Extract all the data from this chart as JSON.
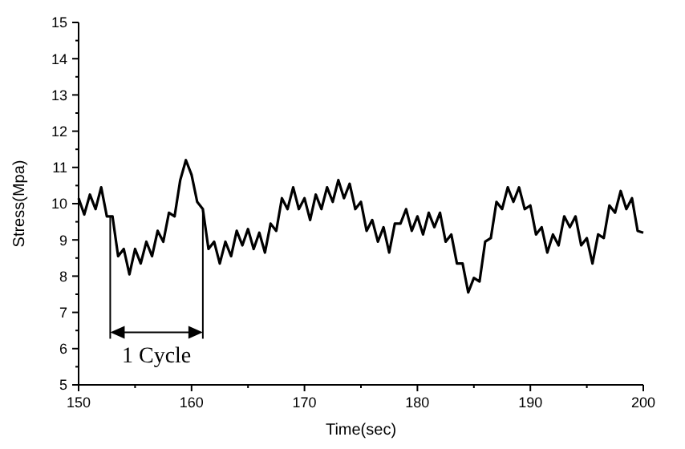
{
  "chart_data": {
    "type": "line",
    "xlabel": "Time(sec)",
    "ylabel": "Stress(Mpa)",
    "x": [
      150,
      150.5,
      151,
      151.5,
      152,
      152.5,
      153,
      153.5,
      154,
      154.5,
      155,
      155.5,
      156,
      156.5,
      157,
      157.5,
      158,
      158.5,
      159,
      159.5,
      160,
      160.5,
      161,
      161.5,
      162,
      162.5,
      163,
      163.5,
      164,
      164.5,
      165,
      165.5,
      166,
      166.5,
      167,
      167.5,
      168,
      168.5,
      169,
      169.5,
      170,
      170.5,
      171,
      171.5,
      172,
      172.5,
      173,
      173.5,
      174,
      174.5,
      175,
      175.5,
      176,
      176.5,
      177,
      177.5,
      178,
      178.5,
      179,
      179.5,
      180,
      180.5,
      181,
      181.5,
      182,
      182.5,
      183,
      183.5,
      184,
      184.5,
      185,
      185.5,
      186,
      186.5,
      187,
      187.5,
      188,
      188.5,
      189,
      189.5,
      190,
      190.5,
      191,
      191.5,
      192,
      192.5,
      193,
      193.5,
      194,
      194.5,
      195,
      195.5,
      196,
      196.5,
      197,
      197.5,
      198,
      198.5,
      199,
      199.5,
      200
    ],
    "series": [
      {
        "color": "#000000",
        "values": [
          10.15,
          9.7,
          10.25,
          9.85,
          10.45,
          9.65,
          9.65,
          8.55,
          8.75,
          8.05,
          8.75,
          8.35,
          8.95,
          8.55,
          9.25,
          8.95,
          9.75,
          9.65,
          10.65,
          11.2,
          10.8,
          10.05,
          9.85,
          8.75,
          8.95,
          8.35,
          8.95,
          8.55,
          9.25,
          8.85,
          9.3,
          8.75,
          9.2,
          8.65,
          9.45,
          9.25,
          10.15,
          9.85,
          10.45,
          9.85,
          10.15,
          9.55,
          10.25,
          9.85,
          10.45,
          10.05,
          10.65,
          10.15,
          10.55,
          9.85,
          10.05,
          9.25,
          9.55,
          8.95,
          9.35,
          8.65,
          9.45,
          9.45,
          9.85,
          9.25,
          9.65,
          9.15,
          9.75,
          9.35,
          9.75,
          8.95,
          9.15,
          8.35,
          8.35,
          7.55,
          7.95,
          7.85,
          8.95,
          9.05,
          10.05,
          9.85,
          10.45,
          10.05,
          10.45,
          9.85,
          9.95,
          9.15,
          9.35,
          8.65,
          9.15,
          8.85,
          9.65,
          9.35,
          9.65,
          8.85,
          9.05,
          8.35,
          9.15,
          9.05,
          9.95,
          9.75,
          10.35,
          9.85,
          10.15,
          9.25,
          9.2
        ]
      }
    ],
    "xlim": [
      150,
      200
    ],
    "xticks": [
      150,
      {
        "value": 155,
        "label": null
      },
      160,
      {
        "value": 165,
        "label": null
      },
      170,
      {
        "value": 175,
        "label": null
      },
      180,
      {
        "value": 185,
        "label": null
      },
      190,
      {
        "value": 195,
        "label": null
      },
      200
    ],
    "ylim": [
      5,
      15
    ],
    "yticks": [
      5,
      {
        "value": 5.5,
        "label": null
      },
      6,
      {
        "value": 6.5,
        "label": null
      },
      7,
      {
        "value": 7.5,
        "label": null
      },
      8,
      {
        "value": 8.5,
        "label": null
      },
      9,
      {
        "value": 9.5,
        "label": null
      },
      10,
      {
        "value": 10.5,
        "label": null
      },
      11,
      {
        "value": 11.5,
        "label": null
      },
      12,
      {
        "value": 12.5,
        "label": null
      },
      13,
      {
        "value": 13.5,
        "label": null
      },
      14,
      {
        "value": 14.5,
        "label": null
      },
      15
    ],
    "ref_lines": [
      {
        "axis": "x",
        "value": 152.8
      },
      {
        "axis": "x",
        "value": 161
      }
    ],
    "annotations": [
      "1 Cycle"
    ],
    "grid": false,
    "line_style": "solid",
    "marker": "none"
  }
}
